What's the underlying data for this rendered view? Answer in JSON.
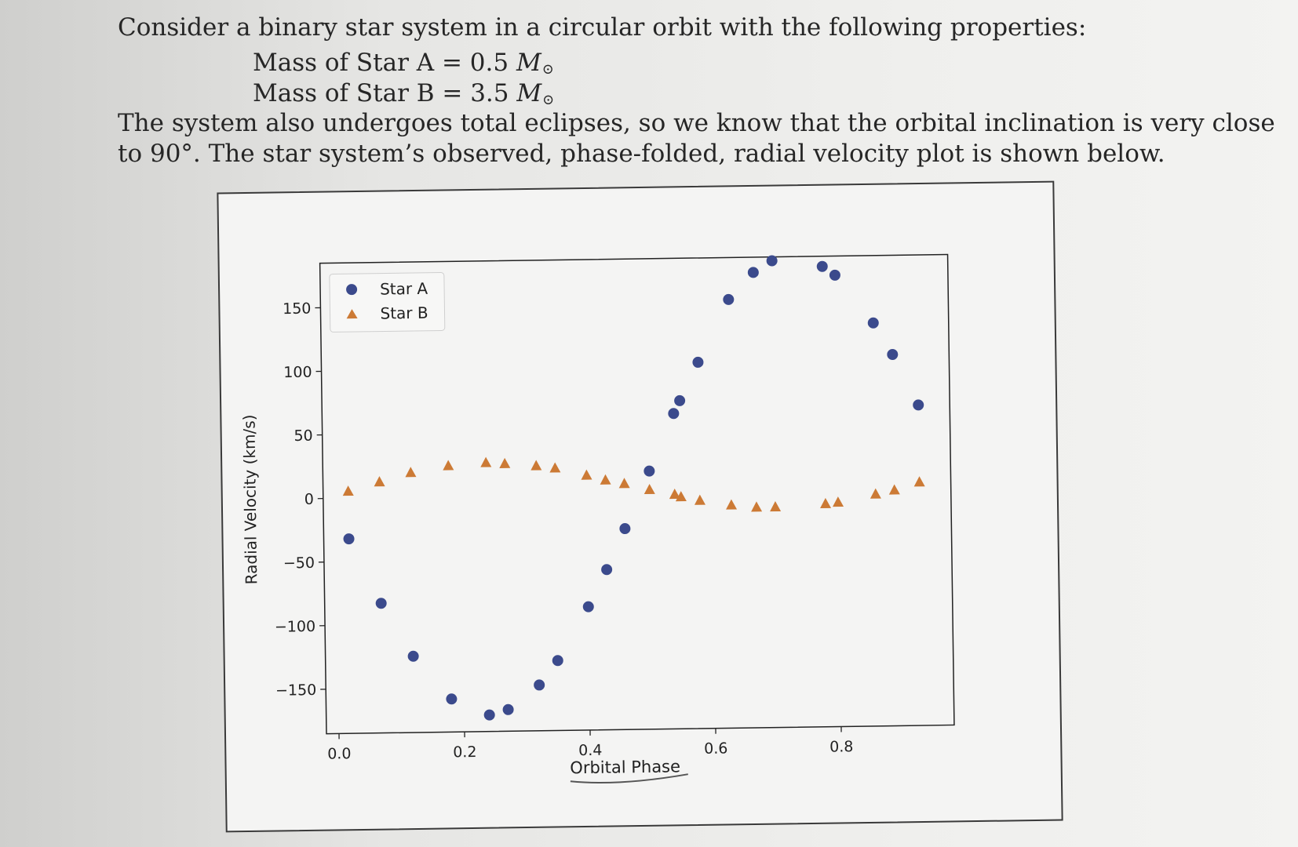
{
  "problem": {
    "intro": "Consider a binary star system in a circular orbit with the following properties:",
    "mass_a_label": "Mass of Star A = 0.5 ",
    "mass_b_label": "Mass of Star B = 3.5 ",
    "mass_unit": "M",
    "sun_symbol": "⊙",
    "line2": "The system also undergoes total eclipses, so we know that the orbital inclination is very close",
    "line3": "to 90°. The star system’s observed, phase-folded, radial velocity plot is shown below."
  },
  "chart_data": {
    "type": "scatter",
    "title": "",
    "xlabel": "Orbital Phase",
    "ylabel": "Radial Velocity (km/s)",
    "xlim": [
      -0.02,
      0.98
    ],
    "ylim": [
      -185,
      185
    ],
    "xticks": [
      0.0,
      0.2,
      0.4,
      0.6,
      0.8
    ],
    "xtick_labels": [
      "0.0",
      "0.2",
      "0.4",
      "0.6",
      "0.8"
    ],
    "yticks": [
      150,
      100,
      50,
      0,
      -50,
      -100,
      -150
    ],
    "ytick_labels": [
      "150",
      "100",
      "50",
      "0",
      "−50",
      "−100",
      "−150"
    ],
    "grid": false,
    "legend_position": "top-left",
    "series": [
      {
        "name": "Star A",
        "marker": "circle",
        "color": "#3b4a8c",
        "x": [
          0.02,
          0.07,
          0.12,
          0.18,
          0.24,
          0.27,
          0.32,
          0.35,
          0.4,
          0.43,
          0.46,
          0.5,
          0.54,
          0.55,
          0.58,
          0.63,
          0.67,
          0.7,
          0.78,
          0.8,
          0.86,
          0.89,
          0.93
        ],
        "y": [
          -32,
          -83,
          -125,
          -159,
          -172,
          -168,
          -149,
          -130,
          -88,
          -59,
          -27,
          18,
          63,
          73,
          103,
          152,
          173,
          182,
          177,
          170,
          132,
          107,
          67
        ]
      },
      {
        "name": "Star B",
        "marker": "triangle",
        "color": "#cc7a35",
        "x": [
          0.02,
          0.07,
          0.12,
          0.18,
          0.24,
          0.27,
          0.32,
          0.35,
          0.4,
          0.43,
          0.46,
          0.5,
          0.54,
          0.55,
          0.58,
          0.63,
          0.67,
          0.7,
          0.78,
          0.8,
          0.86,
          0.89,
          0.93
        ],
        "y": [
          5,
          12,
          19,
          24,
          26,
          25,
          23,
          21,
          15,
          11,
          8,
          3,
          -1,
          -3,
          -6,
          -10,
          -12,
          -12,
          -10,
          -9,
          -3,
          0,
          6
        ]
      }
    ]
  }
}
